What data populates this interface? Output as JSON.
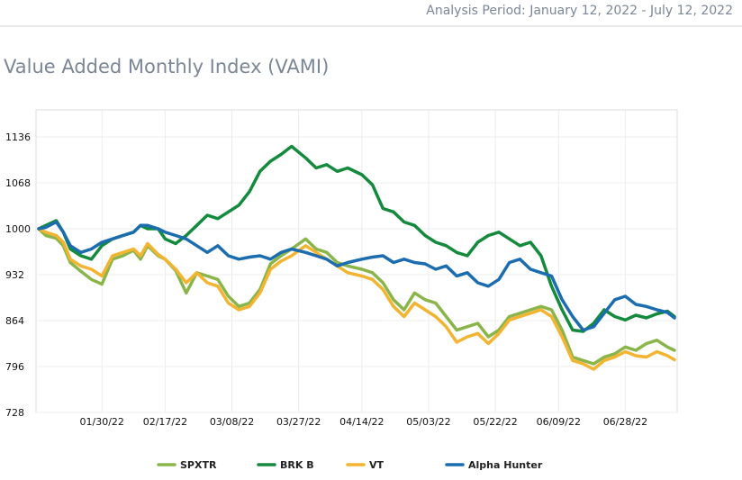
{
  "header": {
    "analysis_period": "Analysis Period: January 12, 2022 - July 12, 2022"
  },
  "section": {
    "title": "Value Added Monthly Index (VAMI)"
  },
  "chart_data": {
    "type": "line",
    "title": "",
    "xlabel": "",
    "ylabel": "",
    "ylim": [
      728,
      1176
    ],
    "x_range": [
      "2022-01-12",
      "2022-07-12"
    ],
    "y_ticks": [
      728,
      796,
      864,
      932,
      1000,
      1068,
      1136
    ],
    "x_ticks": [
      {
        "date": "2022-01-30",
        "label": "01/30/22"
      },
      {
        "date": "2022-02-17",
        "label": "02/17/22"
      },
      {
        "date": "2022-03-08",
        "label": "03/08/22"
      },
      {
        "date": "2022-03-27",
        "label": "03/27/22"
      },
      {
        "date": "2022-04-14",
        "label": "04/14/22"
      },
      {
        "date": "2022-05-03",
        "label": "05/03/22"
      },
      {
        "date": "2022-05-22",
        "label": "05/22/22"
      },
      {
        "date": "2022-06-09",
        "label": "06/09/22"
      },
      {
        "date": "2022-06-28",
        "label": "06/28/22"
      }
    ],
    "grid": true,
    "legend_position": "bottom",
    "series": [
      {
        "name": "SPXTR",
        "color": "#8ab54a",
        "points": [
          [
            "2022-01-12",
            1000
          ],
          [
            "2022-01-14",
            990
          ],
          [
            "2022-01-17",
            986
          ],
          [
            "2022-01-19",
            975
          ],
          [
            "2022-01-21",
            950
          ],
          [
            "2022-01-24",
            937
          ],
          [
            "2022-01-27",
            925
          ],
          [
            "2022-01-30",
            918
          ],
          [
            "2022-02-02",
            955
          ],
          [
            "2022-02-05",
            960
          ],
          [
            "2022-02-08",
            968
          ],
          [
            "2022-02-10",
            955
          ],
          [
            "2022-02-12",
            975
          ],
          [
            "2022-02-15",
            960
          ],
          [
            "2022-02-17",
            955
          ],
          [
            "2022-02-20",
            938
          ],
          [
            "2022-02-23",
            905
          ],
          [
            "2022-02-26",
            935
          ],
          [
            "2022-03-01",
            930
          ],
          [
            "2022-03-04",
            925
          ],
          [
            "2022-03-07",
            900
          ],
          [
            "2022-03-10",
            885
          ],
          [
            "2022-03-13",
            890
          ],
          [
            "2022-03-16",
            910
          ],
          [
            "2022-03-19",
            948
          ],
          [
            "2022-03-22",
            960
          ],
          [
            "2022-03-25",
            970
          ],
          [
            "2022-03-29",
            985
          ],
          [
            "2022-04-01",
            970
          ],
          [
            "2022-04-04",
            965
          ],
          [
            "2022-04-07",
            950
          ],
          [
            "2022-04-10",
            945
          ],
          [
            "2022-04-14",
            940
          ],
          [
            "2022-04-17",
            935
          ],
          [
            "2022-04-20",
            920
          ],
          [
            "2022-04-23",
            895
          ],
          [
            "2022-04-26",
            880
          ],
          [
            "2022-04-29",
            905
          ],
          [
            "2022-05-02",
            895
          ],
          [
            "2022-05-05",
            890
          ],
          [
            "2022-05-08",
            870
          ],
          [
            "2022-05-11",
            850
          ],
          [
            "2022-05-14",
            855
          ],
          [
            "2022-05-17",
            860
          ],
          [
            "2022-05-20",
            840
          ],
          [
            "2022-05-23",
            850
          ],
          [
            "2022-05-26",
            870
          ],
          [
            "2022-05-29",
            875
          ],
          [
            "2022-06-01",
            880
          ],
          [
            "2022-06-04",
            885
          ],
          [
            "2022-06-07",
            880
          ],
          [
            "2022-06-10",
            850
          ],
          [
            "2022-06-13",
            810
          ],
          [
            "2022-06-16",
            805
          ],
          [
            "2022-06-19",
            800
          ],
          [
            "2022-06-22",
            810
          ],
          [
            "2022-06-25",
            815
          ],
          [
            "2022-06-28",
            825
          ],
          [
            "2022-07-01",
            820
          ],
          [
            "2022-07-04",
            830
          ],
          [
            "2022-07-07",
            835
          ],
          [
            "2022-07-10",
            825
          ],
          [
            "2022-07-12",
            820
          ]
        ]
      },
      {
        "name": "BRK B",
        "color": "#138a3c",
        "points": [
          [
            "2022-01-12",
            1000
          ],
          [
            "2022-01-14",
            1005
          ],
          [
            "2022-01-17",
            1012
          ],
          [
            "2022-01-19",
            995
          ],
          [
            "2022-01-21",
            970
          ],
          [
            "2022-01-24",
            960
          ],
          [
            "2022-01-27",
            955
          ],
          [
            "2022-01-30",
            975
          ],
          [
            "2022-02-02",
            985
          ],
          [
            "2022-02-05",
            990
          ],
          [
            "2022-02-08",
            995
          ],
          [
            "2022-02-10",
            1005
          ],
          [
            "2022-02-12",
            1000
          ],
          [
            "2022-02-15",
            1000
          ],
          [
            "2022-02-17",
            985
          ],
          [
            "2022-02-20",
            978
          ],
          [
            "2022-02-23",
            990
          ],
          [
            "2022-02-26",
            1005
          ],
          [
            "2022-03-01",
            1020
          ],
          [
            "2022-03-04",
            1015
          ],
          [
            "2022-03-07",
            1025
          ],
          [
            "2022-03-10",
            1035
          ],
          [
            "2022-03-13",
            1055
          ],
          [
            "2022-03-16",
            1085
          ],
          [
            "2022-03-19",
            1100
          ],
          [
            "2022-03-22",
            1110
          ],
          [
            "2022-03-25",
            1122
          ],
          [
            "2022-03-29",
            1105
          ],
          [
            "2022-04-01",
            1090
          ],
          [
            "2022-04-04",
            1095
          ],
          [
            "2022-04-07",
            1085
          ],
          [
            "2022-04-10",
            1090
          ],
          [
            "2022-04-14",
            1080
          ],
          [
            "2022-04-17",
            1065
          ],
          [
            "2022-04-20",
            1030
          ],
          [
            "2022-04-23",
            1025
          ],
          [
            "2022-04-26",
            1010
          ],
          [
            "2022-04-29",
            1005
          ],
          [
            "2022-05-02",
            990
          ],
          [
            "2022-05-05",
            980
          ],
          [
            "2022-05-08",
            975
          ],
          [
            "2022-05-11",
            965
          ],
          [
            "2022-05-14",
            960
          ],
          [
            "2022-05-17",
            980
          ],
          [
            "2022-05-20",
            990
          ],
          [
            "2022-05-23",
            995
          ],
          [
            "2022-05-26",
            985
          ],
          [
            "2022-05-29",
            975
          ],
          [
            "2022-06-01",
            980
          ],
          [
            "2022-06-04",
            960
          ],
          [
            "2022-06-07",
            915
          ],
          [
            "2022-06-10",
            880
          ],
          [
            "2022-06-13",
            850
          ],
          [
            "2022-06-16",
            848
          ],
          [
            "2022-06-19",
            860
          ],
          [
            "2022-06-22",
            880
          ],
          [
            "2022-06-25",
            870
          ],
          [
            "2022-06-28",
            865
          ],
          [
            "2022-07-01",
            872
          ],
          [
            "2022-07-04",
            868
          ],
          [
            "2022-07-07",
            874
          ],
          [
            "2022-07-10",
            878
          ],
          [
            "2022-07-12",
            870
          ]
        ]
      },
      {
        "name": "VT",
        "color": "#f2b431",
        "points": [
          [
            "2022-01-12",
            1000
          ],
          [
            "2022-01-14",
            995
          ],
          [
            "2022-01-17",
            990
          ],
          [
            "2022-01-19",
            980
          ],
          [
            "2022-01-21",
            955
          ],
          [
            "2022-01-24",
            945
          ],
          [
            "2022-01-27",
            940
          ],
          [
            "2022-01-30",
            930
          ],
          [
            "2022-02-02",
            960
          ],
          [
            "2022-02-05",
            965
          ],
          [
            "2022-02-08",
            970
          ],
          [
            "2022-02-10",
            960
          ],
          [
            "2022-02-12",
            978
          ],
          [
            "2022-02-15",
            962
          ],
          [
            "2022-02-17",
            955
          ],
          [
            "2022-02-20",
            940
          ],
          [
            "2022-02-23",
            920
          ],
          [
            "2022-02-26",
            935
          ],
          [
            "2022-03-01",
            920
          ],
          [
            "2022-03-04",
            915
          ],
          [
            "2022-03-07",
            890
          ],
          [
            "2022-03-10",
            880
          ],
          [
            "2022-03-13",
            885
          ],
          [
            "2022-03-16",
            905
          ],
          [
            "2022-03-19",
            940
          ],
          [
            "2022-03-22",
            952
          ],
          [
            "2022-03-25",
            960
          ],
          [
            "2022-03-29",
            975
          ],
          [
            "2022-04-01",
            965
          ],
          [
            "2022-04-04",
            955
          ],
          [
            "2022-04-07",
            945
          ],
          [
            "2022-04-10",
            935
          ],
          [
            "2022-04-14",
            930
          ],
          [
            "2022-04-17",
            925
          ],
          [
            "2022-04-20",
            910
          ],
          [
            "2022-04-23",
            885
          ],
          [
            "2022-04-26",
            870
          ],
          [
            "2022-04-29",
            890
          ],
          [
            "2022-05-02",
            880
          ],
          [
            "2022-05-05",
            870
          ],
          [
            "2022-05-08",
            855
          ],
          [
            "2022-05-11",
            832
          ],
          [
            "2022-05-14",
            840
          ],
          [
            "2022-05-17",
            845
          ],
          [
            "2022-05-20",
            830
          ],
          [
            "2022-05-23",
            845
          ],
          [
            "2022-05-26",
            865
          ],
          [
            "2022-05-29",
            870
          ],
          [
            "2022-06-01",
            875
          ],
          [
            "2022-06-04",
            880
          ],
          [
            "2022-06-07",
            870
          ],
          [
            "2022-06-10",
            840
          ],
          [
            "2022-06-13",
            805
          ],
          [
            "2022-06-16",
            800
          ],
          [
            "2022-06-19",
            792
          ],
          [
            "2022-06-22",
            805
          ],
          [
            "2022-06-25",
            810
          ],
          [
            "2022-06-28",
            818
          ],
          [
            "2022-07-01",
            812
          ],
          [
            "2022-07-04",
            810
          ],
          [
            "2022-07-07",
            818
          ],
          [
            "2022-07-10",
            812
          ],
          [
            "2022-07-12",
            806
          ]
        ]
      },
      {
        "name": "Alpha Hunter",
        "color": "#1b6db0",
        "points": [
          [
            "2022-01-12",
            1000
          ],
          [
            "2022-01-14",
            1002
          ],
          [
            "2022-01-17",
            1010
          ],
          [
            "2022-01-19",
            995
          ],
          [
            "2022-01-21",
            975
          ],
          [
            "2022-01-24",
            965
          ],
          [
            "2022-01-27",
            970
          ],
          [
            "2022-01-30",
            980
          ],
          [
            "2022-02-02",
            985
          ],
          [
            "2022-02-05",
            990
          ],
          [
            "2022-02-08",
            995
          ],
          [
            "2022-02-10",
            1005
          ],
          [
            "2022-02-12",
            1005
          ],
          [
            "2022-02-15",
            1000
          ],
          [
            "2022-02-17",
            995
          ],
          [
            "2022-02-20",
            990
          ],
          [
            "2022-02-23",
            985
          ],
          [
            "2022-02-26",
            975
          ],
          [
            "2022-03-01",
            965
          ],
          [
            "2022-03-04",
            975
          ],
          [
            "2022-03-07",
            960
          ],
          [
            "2022-03-10",
            955
          ],
          [
            "2022-03-13",
            958
          ],
          [
            "2022-03-16",
            960
          ],
          [
            "2022-03-19",
            955
          ],
          [
            "2022-03-22",
            965
          ],
          [
            "2022-03-25",
            970
          ],
          [
            "2022-03-29",
            965
          ],
          [
            "2022-04-01",
            960
          ],
          [
            "2022-04-04",
            955
          ],
          [
            "2022-04-07",
            945
          ],
          [
            "2022-04-10",
            950
          ],
          [
            "2022-04-14",
            955
          ],
          [
            "2022-04-17",
            958
          ],
          [
            "2022-04-20",
            960
          ],
          [
            "2022-04-23",
            950
          ],
          [
            "2022-04-26",
            955
          ],
          [
            "2022-04-29",
            950
          ],
          [
            "2022-05-02",
            948
          ],
          [
            "2022-05-05",
            940
          ],
          [
            "2022-05-08",
            945
          ],
          [
            "2022-05-11",
            930
          ],
          [
            "2022-05-14",
            935
          ],
          [
            "2022-05-17",
            920
          ],
          [
            "2022-05-20",
            915
          ],
          [
            "2022-05-23",
            925
          ],
          [
            "2022-05-26",
            950
          ],
          [
            "2022-05-29",
            955
          ],
          [
            "2022-06-01",
            940
          ],
          [
            "2022-06-04",
            935
          ],
          [
            "2022-06-07",
            930
          ],
          [
            "2022-06-10",
            895
          ],
          [
            "2022-06-13",
            870
          ],
          [
            "2022-06-16",
            850
          ],
          [
            "2022-06-19",
            855
          ],
          [
            "2022-06-22",
            875
          ],
          [
            "2022-06-25",
            895
          ],
          [
            "2022-06-28",
            900
          ],
          [
            "2022-07-01",
            888
          ],
          [
            "2022-07-04",
            885
          ],
          [
            "2022-07-07",
            880
          ],
          [
            "2022-07-10",
            876
          ],
          [
            "2022-07-12",
            868
          ]
        ]
      }
    ]
  }
}
